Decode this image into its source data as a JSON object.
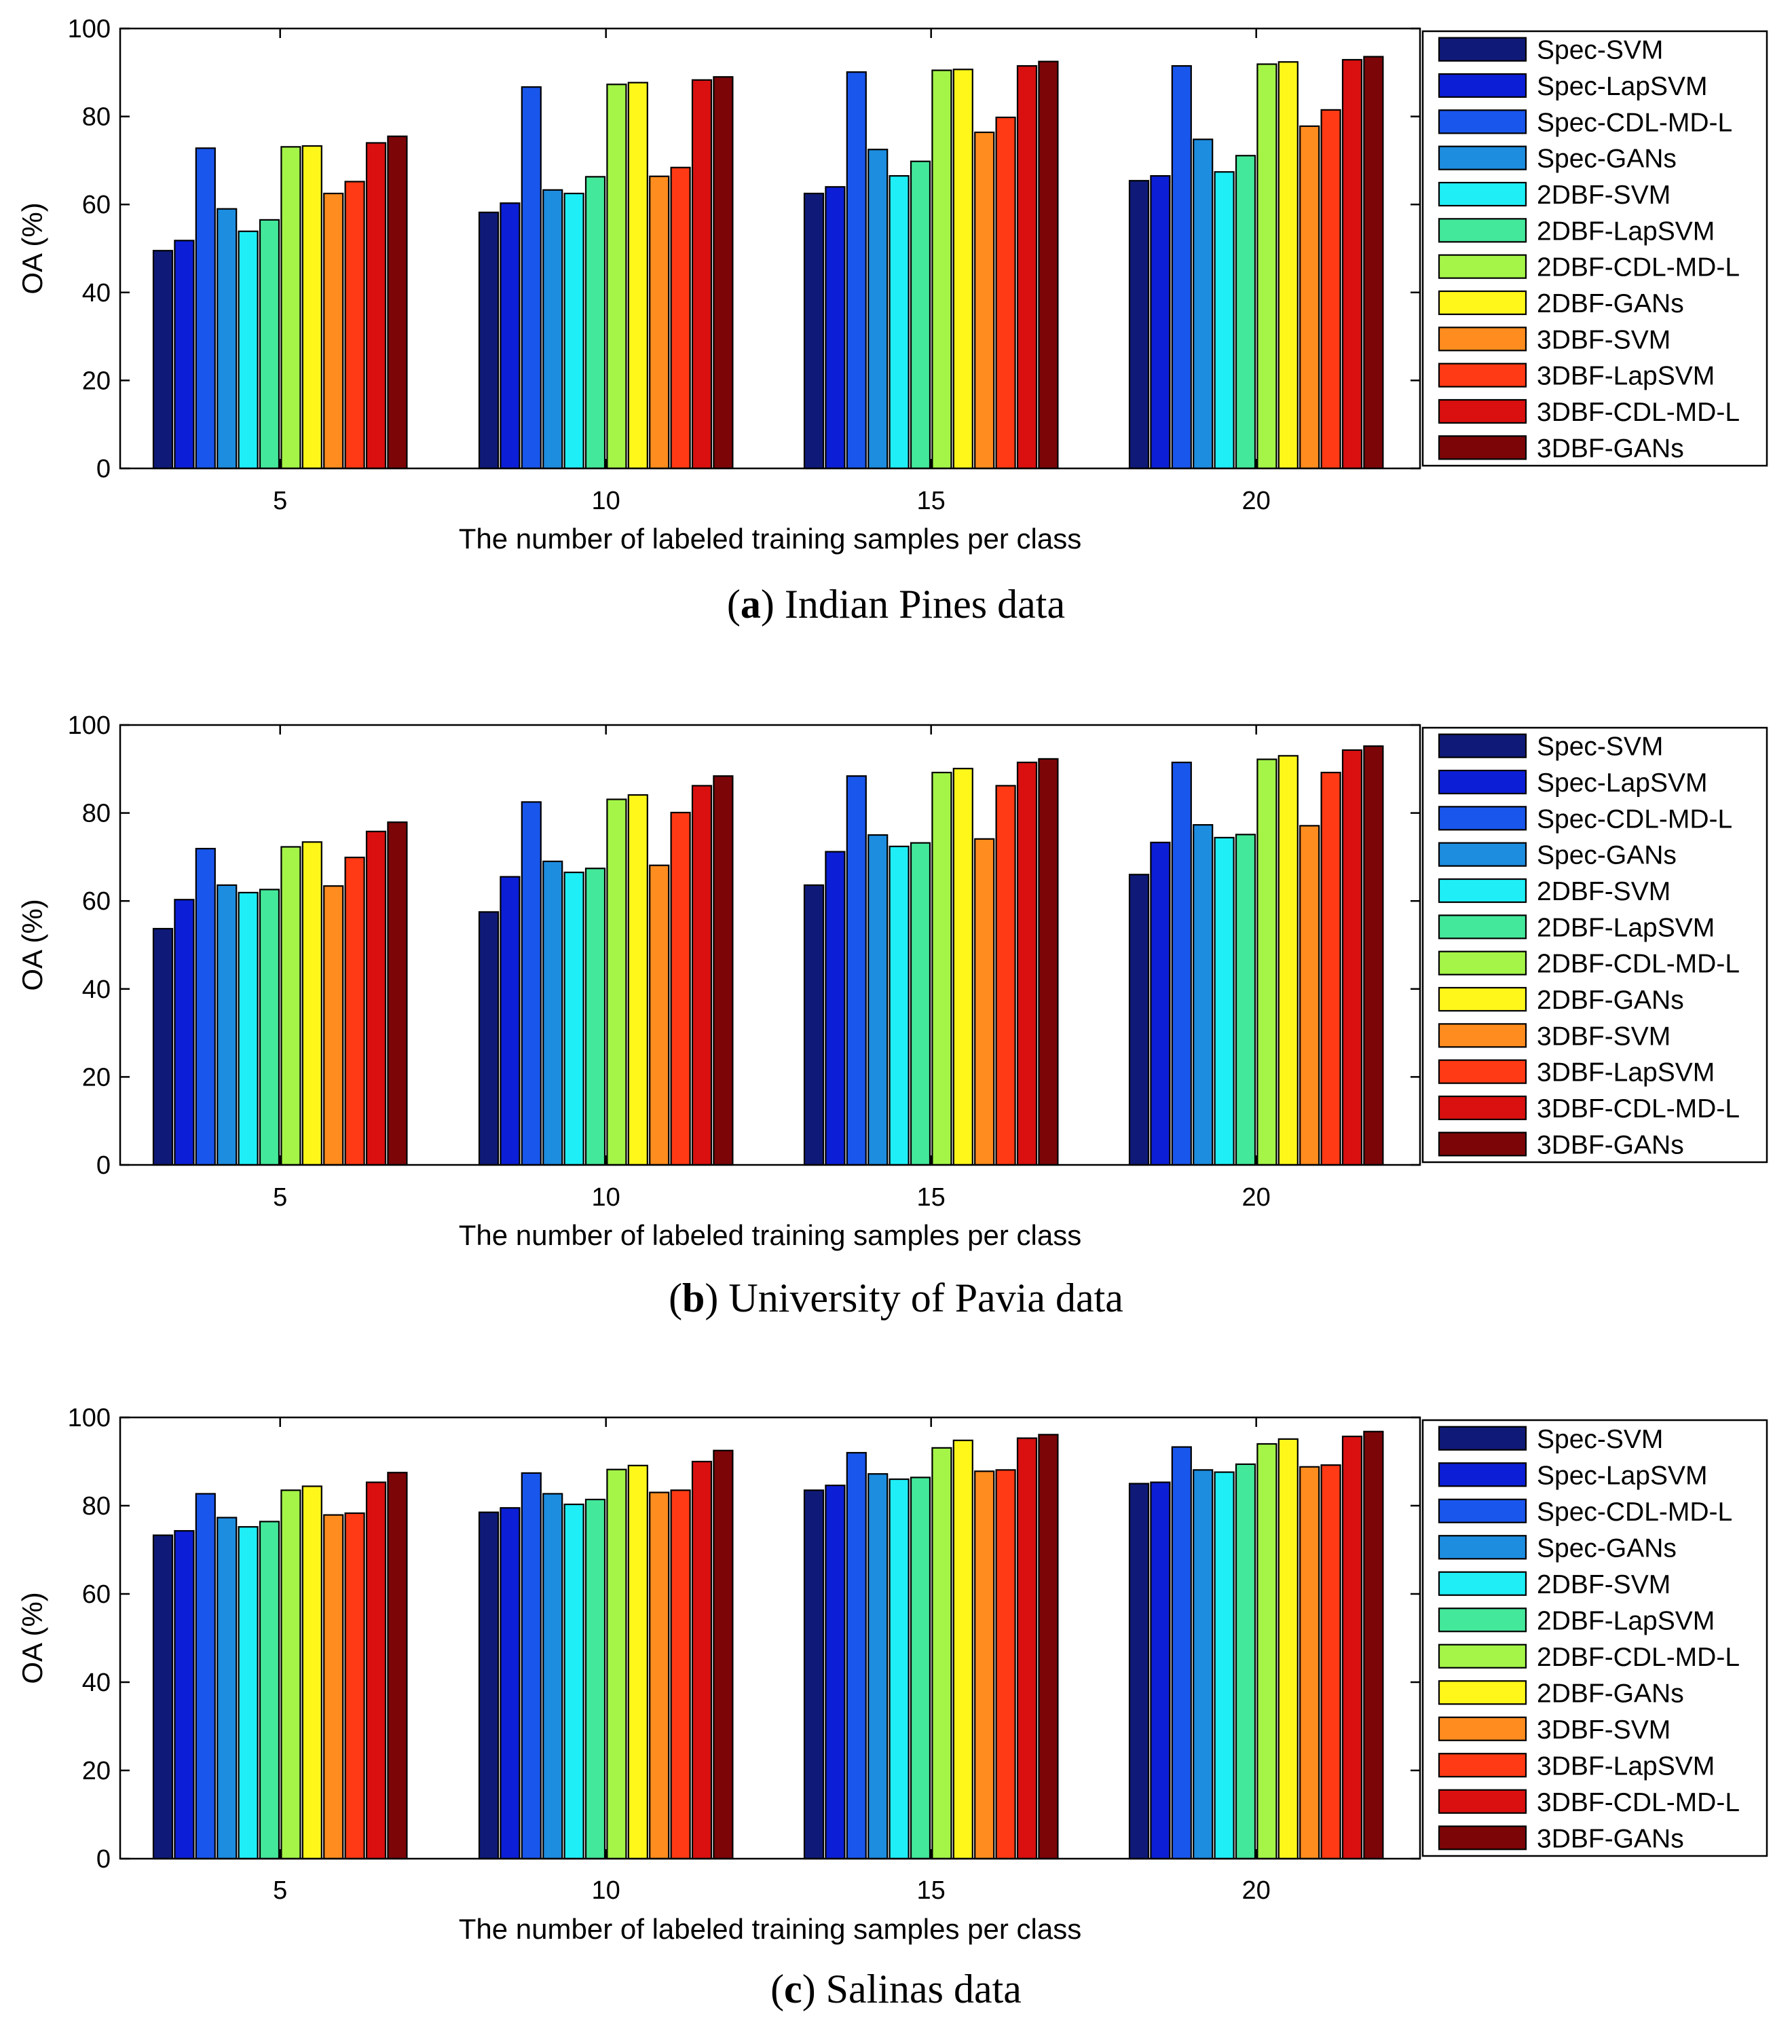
{
  "figure": {
    "colors": [
      "#0f1a78",
      "#0c1fd6",
      "#1956ec",
      "#1d8de0",
      "#1feef6",
      "#44e89a",
      "#a4f548",
      "#fff71a",
      "#ff8c1e",
      "#ff3a14",
      "#d9100f",
      "#7c0508"
    ]
  },
  "chart_data": [
    {
      "type": "bar",
      "caption_letter": "a",
      "caption_text": "Indian Pines data",
      "xlabel": "The number of labeled training samples per class",
      "ylabel": "OA (%)",
      "ylim": [
        0,
        100
      ],
      "yticks": [
        "0",
        "20",
        "40",
        "60",
        "80",
        "100"
      ],
      "categories": [
        "5",
        "10",
        "15",
        "20"
      ],
      "series": [
        {
          "name": "Spec-SVM",
          "values": [
            49.5,
            58.2,
            62.5,
            65.4
          ]
        },
        {
          "name": "Spec-LapSVM",
          "values": [
            51.8,
            60.3,
            64.0,
            66.5
          ]
        },
        {
          "name": "Spec-CDL-MD-L",
          "values": [
            72.8,
            86.7,
            90.1,
            91.5
          ]
        },
        {
          "name": "Spec-GANs",
          "values": [
            59.0,
            63.3,
            72.5,
            74.8
          ]
        },
        {
          "name": "2DBF-SVM",
          "values": [
            53.9,
            62.5,
            66.5,
            67.4
          ]
        },
        {
          "name": "2DBF-LapSVM",
          "values": [
            56.5,
            66.3,
            69.8,
            71.1
          ]
        },
        {
          "name": "2DBF-CDL-MD-L",
          "values": [
            73.1,
            87.3,
            90.5,
            91.9
          ]
        },
        {
          "name": "2DBF-GANs",
          "values": [
            73.3,
            87.7,
            90.7,
            92.4
          ]
        },
        {
          "name": "3DBF-SVM",
          "values": [
            62.5,
            66.4,
            76.4,
            77.8
          ]
        },
        {
          "name": "3DBF-LapSVM",
          "values": [
            65.2,
            68.4,
            79.8,
            81.5
          ]
        },
        {
          "name": "3DBF-CDL-MD-L",
          "values": [
            74.0,
            88.3,
            91.5,
            92.9
          ]
        },
        {
          "name": "3DBF-GANs",
          "values": [
            75.5,
            89.0,
            92.5,
            93.6
          ]
        }
      ]
    },
    {
      "type": "bar",
      "caption_letter": "b",
      "caption_text": "University of Pavia data",
      "xlabel": "The number of labeled training samples per class",
      "ylabel": "OA (%)",
      "ylim": [
        0,
        100
      ],
      "yticks": [
        "0",
        "20",
        "40",
        "60",
        "80",
        "100"
      ],
      "categories": [
        "5",
        "10",
        "15",
        "20"
      ],
      "series": [
        {
          "name": "Spec-SVM",
          "values": [
            53.7,
            57.5,
            63.6,
            66.0
          ]
        },
        {
          "name": "Spec-LapSVM",
          "values": [
            60.3,
            65.5,
            71.2,
            73.3
          ]
        },
        {
          "name": "Spec-CDL-MD-L",
          "values": [
            71.9,
            82.5,
            88.4,
            91.5
          ]
        },
        {
          "name": "Spec-GANs",
          "values": [
            63.6,
            69.0,
            75.0,
            77.3
          ]
        },
        {
          "name": "2DBF-SVM",
          "values": [
            61.9,
            66.5,
            72.4,
            74.4
          ]
        },
        {
          "name": "2DBF-LapSVM",
          "values": [
            62.6,
            67.4,
            73.2,
            75.1
          ]
        },
        {
          "name": "2DBF-CDL-MD-L",
          "values": [
            72.3,
            83.1,
            89.2,
            92.2
          ]
        },
        {
          "name": "2DBF-GANs",
          "values": [
            73.4,
            84.1,
            90.1,
            93.0
          ]
        },
        {
          "name": "3DBF-SVM",
          "values": [
            63.4,
            68.1,
            74.1,
            77.1
          ]
        },
        {
          "name": "3DBF-LapSVM",
          "values": [
            69.9,
            80.1,
            86.2,
            89.2
          ]
        },
        {
          "name": "3DBF-CDL-MD-L",
          "values": [
            75.8,
            86.2,
            91.5,
            94.3
          ]
        },
        {
          "name": "3DBF-GANs",
          "values": [
            77.9,
            88.4,
            92.3,
            95.2
          ]
        }
      ]
    },
    {
      "type": "bar",
      "caption_letter": "c",
      "caption_text": "Salinas data",
      "xlabel": "The number of labeled training samples per class",
      "ylabel": "OA (%)",
      "ylim": [
        0,
        100
      ],
      "yticks": [
        "0",
        "20",
        "40",
        "60",
        "80",
        "100"
      ],
      "categories": [
        "5",
        "10",
        "15",
        "20"
      ],
      "series": [
        {
          "name": "Spec-SVM",
          "values": [
            73.3,
            78.5,
            83.5,
            85.0
          ]
        },
        {
          "name": "Spec-LapSVM",
          "values": [
            74.3,
            79.5,
            84.6,
            85.3
          ]
        },
        {
          "name": "Spec-CDL-MD-L",
          "values": [
            82.7,
            87.4,
            92.0,
            93.3
          ]
        },
        {
          "name": "Spec-GANs",
          "values": [
            77.3,
            82.7,
            87.2,
            88.1
          ]
        },
        {
          "name": "2DBF-SVM",
          "values": [
            75.2,
            80.3,
            86.0,
            87.6
          ]
        },
        {
          "name": "2DBF-LapSVM",
          "values": [
            76.4,
            81.4,
            86.4,
            89.4
          ]
        },
        {
          "name": "2DBF-CDL-MD-L",
          "values": [
            83.5,
            88.2,
            93.1,
            94.0
          ]
        },
        {
          "name": "2DBF-GANs",
          "values": [
            84.4,
            89.1,
            94.8,
            95.1
          ]
        },
        {
          "name": "3DBF-SVM",
          "values": [
            77.9,
            83.0,
            87.8,
            88.8
          ]
        },
        {
          "name": "3DBF-LapSVM",
          "values": [
            78.3,
            83.5,
            88.1,
            89.2
          ]
        },
        {
          "name": "3DBF-CDL-MD-L",
          "values": [
            85.3,
            90.0,
            95.3,
            95.7
          ]
        },
        {
          "name": "3DBF-GANs",
          "values": [
            87.5,
            92.5,
            96.1,
            96.8
          ]
        }
      ]
    }
  ]
}
